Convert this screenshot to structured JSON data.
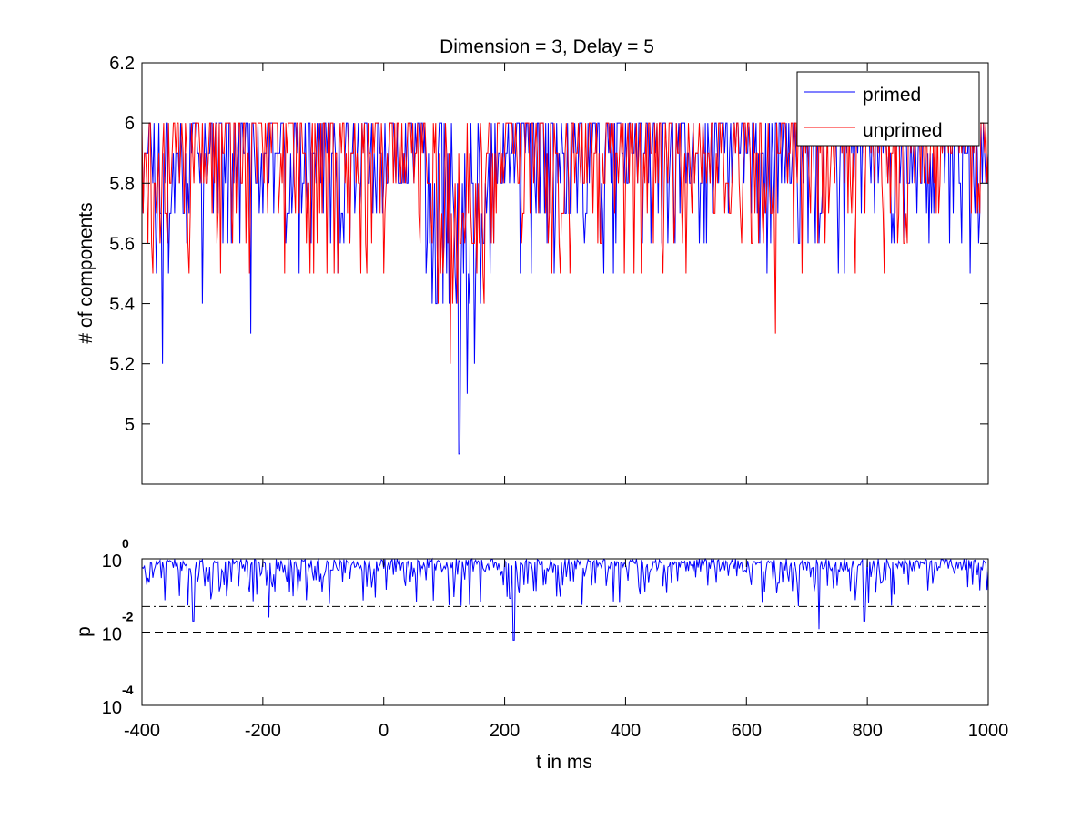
{
  "chart_data": [
    {
      "type": "line",
      "title": "Dimension  = 3, Delay = 5",
      "xlabel": "",
      "ylabel": "# of components",
      "xlim": [
        -400,
        1000
      ],
      "ylim": [
        4.8,
        6.2
      ],
      "yticks": [
        "5",
        "5.2",
        "5.4",
        "5.6",
        "5.8",
        "6",
        "6.2"
      ],
      "legend_position": "top-right",
      "series": [
        {
          "name": "primed",
          "color": "#0000ff"
        },
        {
          "name": "unprimed",
          "color": "#ff0000"
        }
      ],
      "x_step_ms": 2,
      "value_note": "values are integer multiples of 0.1 between 4.9 and 6.0; dips to 5.2-5.4 near -370 ms and minimum 4.9 near 125 ms",
      "dip_points": [
        {
          "x": -366,
          "series": "primed",
          "y": 5.2
        },
        {
          "x": -300,
          "series": "primed",
          "y": 5.4
        },
        {
          "x": -220,
          "series": "primed",
          "y": 5.3
        },
        {
          "x": 110,
          "series": "unprimed",
          "y": 5.2
        },
        {
          "x": 125,
          "series": "primed",
          "y": 4.9
        },
        {
          "x": 138,
          "series": "primed",
          "y": 5.1
        },
        {
          "x": 150,
          "series": "primed",
          "y": 5.2
        },
        {
          "x": 648,
          "series": "unprimed",
          "y": 5.3
        }
      ]
    },
    {
      "type": "line",
      "xlabel": "t in ms",
      "ylabel": "p",
      "xlim": [
        -400,
        1000
      ],
      "xticks": [
        "-400",
        "-200",
        "0",
        "200",
        "400",
        "600",
        "800",
        "1000"
      ],
      "yscale": "log",
      "ylim": [
        0.0001,
        1
      ],
      "yticks": [
        {
          "base": "10",
          "exp": "0"
        },
        {
          "base": "10",
          "exp": "-2"
        },
        {
          "base": "10",
          "exp": "-4"
        }
      ],
      "series": [
        {
          "color": "#0000ff"
        }
      ],
      "reference_lines": [
        {
          "y": 0.05,
          "style": "dash-dot"
        },
        {
          "y": 0.01,
          "style": "dashed"
        }
      ],
      "dip_points": [
        {
          "x": -315,
          "y": 0.02
        },
        {
          "x": -190,
          "y": 0.025
        },
        {
          "x": 215,
          "y": 0.006
        },
        {
          "x": 720,
          "y": 0.012
        },
        {
          "x": 795,
          "y": 0.02
        }
      ]
    }
  ]
}
